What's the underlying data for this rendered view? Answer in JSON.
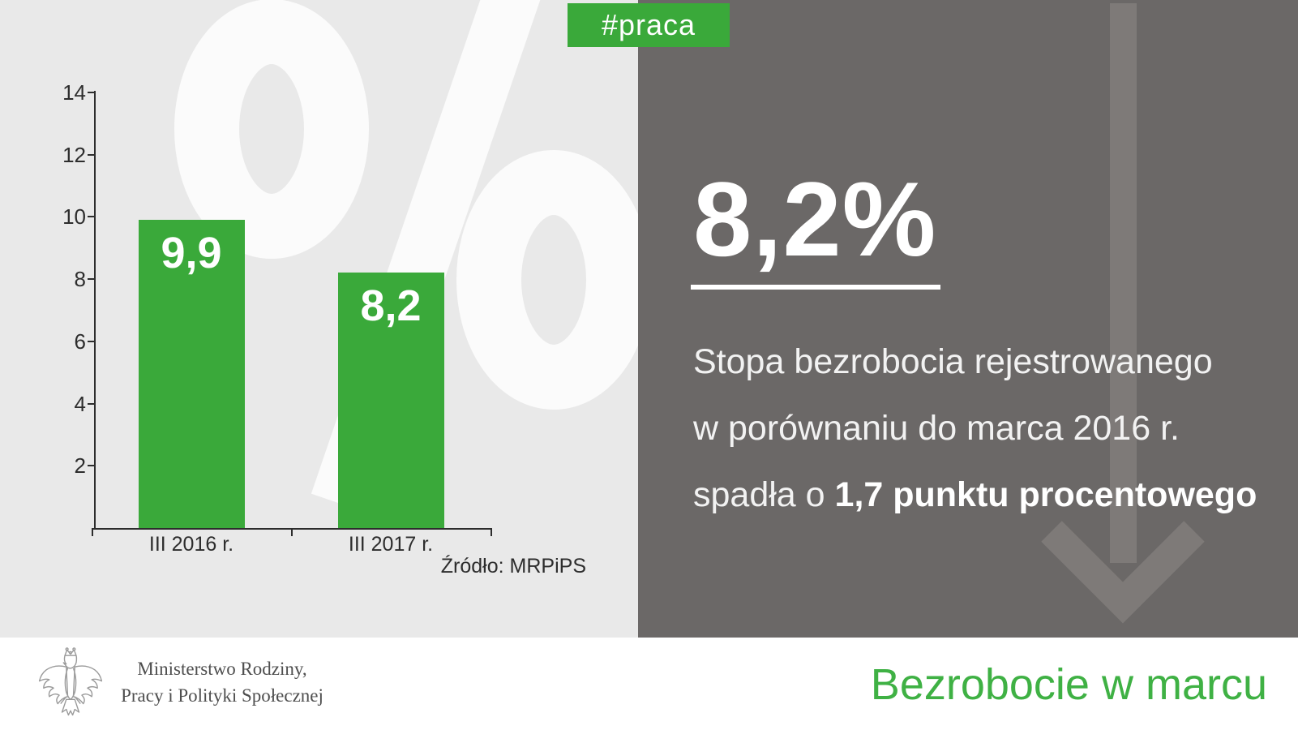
{
  "badge": {
    "label": "#praca"
  },
  "chart_data": {
    "type": "bar",
    "title": "",
    "xlabel": "",
    "ylabel": "",
    "categories": [
      "III 2016 r.",
      "III 2017 r."
    ],
    "values": [
      9.9,
      8.2
    ],
    "value_labels": [
      "9,9",
      "8,2"
    ],
    "yticks": [
      2,
      4,
      6,
      8,
      10,
      12,
      14
    ],
    "ylim": [
      0,
      14
    ],
    "grid": false,
    "legend": false,
    "bar_color": "#3aa93a",
    "source": "Źródło: MRPiPS",
    "watermark_symbol": "%"
  },
  "panel": {
    "headline": "8,2%",
    "line1": "Stopa bezrobocia rejestrowanego",
    "line2": "w porównaniu do marca 2016 r.",
    "line3_regular": "spadła o ",
    "line3_bold": "1,7 punktu procentowego"
  },
  "footer": {
    "ministry_line1": "Ministerstwo Rodziny,",
    "ministry_line2": "Pracy i Polityki Społecznej",
    "title": "Bezrobocie w marcu"
  },
  "colors": {
    "green": "#3aa93a",
    "title_green": "#3fb144",
    "dark_panel": "#6b6867",
    "light_panel": "#e9e9e9",
    "arrow_gray": "#7e7a78",
    "watermark": "#fbfbfb",
    "axis_text": "#2d2d2d"
  }
}
